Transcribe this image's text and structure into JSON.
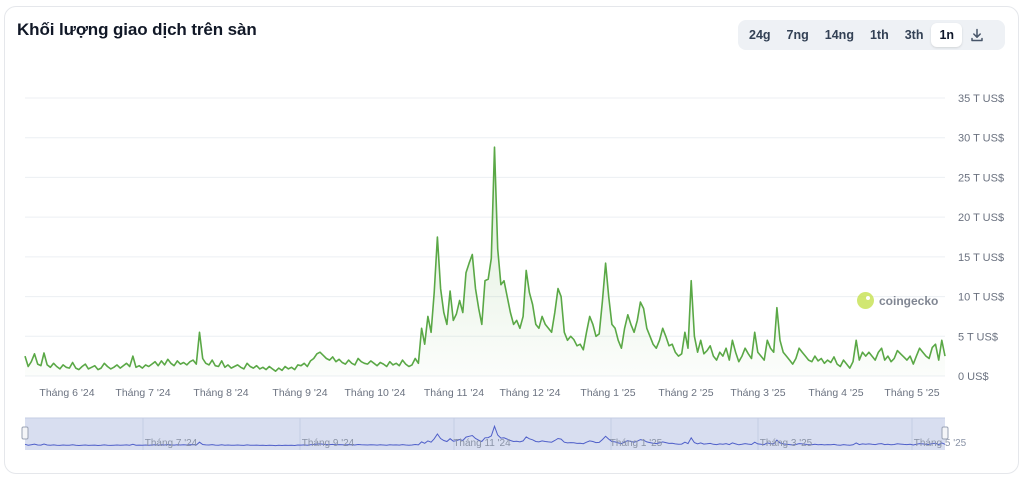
{
  "header": {
    "title": "Khối lượng giao dịch trên sàn",
    "ranges": [
      "24g",
      "7ng",
      "14ng",
      "1th",
      "3th",
      "1n"
    ],
    "active_range": "1n",
    "download_icon": "download-icon"
  },
  "watermark": {
    "text": "coingecko",
    "icon": "coingecko-logo-icon"
  },
  "colors": {
    "line": "#5aa846",
    "area_top": "#5aa846",
    "grid": "#eceff3",
    "axis_text": "#6b7280",
    "navigator_fill": "#d8def0",
    "navigator_line": "#4f5fc9"
  },
  "chart_data": {
    "type": "area",
    "title": "Khối lượng giao dịch trên sàn",
    "xlabel": "",
    "ylabel": "",
    "y_unit": "T US$",
    "ylim": [
      0,
      35
    ],
    "y_ticks": [
      "0 US$",
      "5 T US$",
      "10 T US$",
      "15 T US$",
      "20 T US$",
      "25 T US$",
      "30 T US$",
      "35 T US$"
    ],
    "x_ticks": [
      "Tháng 6 '24",
      "Tháng 7 '24",
      "Tháng 8 '24",
      "Tháng 9 '24",
      "Tháng 10 '24",
      "Tháng 11 '24",
      "Tháng 12 '24",
      "Tháng 1 '25",
      "Tháng 2 '25",
      "Tháng 3 '25",
      "Tháng 4 '25",
      "Tháng 5 '25"
    ],
    "navigator_ticks": [
      "Tháng 7 '24",
      "Tháng 9 '24",
      "Tháng 11 '24",
      "Tháng 1 '25",
      "Tháng 3 '25",
      "Tháng 5 '25"
    ],
    "grid": true,
    "legend": "none",
    "series": [
      {
        "values": [
          2.5,
          1.2,
          1.8,
          2.8,
          1.5,
          1.3,
          2.9,
          1.4,
          1.1,
          1.6,
          1.2,
          0.9,
          1.4,
          1.1,
          1.0,
          1.7,
          1.0,
          0.8,
          1.2,
          1.5,
          0.9,
          1.1,
          1.3,
          0.8,
          1.0,
          1.6,
          1.2,
          0.9,
          1.1,
          1.4,
          1.0,
          1.3,
          1.6,
          1.2,
          2.5,
          1.1,
          1.3,
          1.0,
          1.4,
          1.2,
          1.5,
          1.8,
          1.3,
          1.9,
          1.4,
          2.1,
          1.6,
          1.3,
          1.9,
          1.5,
          1.7,
          1.4,
          1.8,
          2.0,
          1.5,
          5.5,
          2.2,
          1.6,
          1.4,
          2.0,
          1.3,
          1.2,
          1.9,
          1.1,
          1.4,
          1.0,
          1.2,
          1.4,
          1.1,
          0.9,
          1.6,
          1.2,
          1.0,
          1.3,
          0.9,
          1.1,
          0.8,
          1.2,
          0.9,
          0.6,
          1.0,
          0.7,
          1.2,
          0.9,
          1.1,
          0.8,
          1.4,
          1.3,
          1.6,
          1.2,
          1.9,
          2.2,
          2.8,
          3.0,
          2.6,
          2.2,
          2.0,
          2.4,
          1.8,
          2.1,
          1.7,
          1.5,
          2.0,
          1.6,
          1.4,
          2.2,
          1.8,
          1.6,
          1.5,
          1.9,
          1.6,
          1.3,
          1.7,
          1.5,
          1.2,
          1.8,
          1.4,
          1.6,
          1.3,
          2.0,
          1.5,
          1.2,
          1.4,
          2.2,
          1.6,
          6.0,
          4.0,
          7.5,
          5.5,
          10.5,
          17.5,
          11.0,
          8.0,
          6.5,
          10.7,
          7.0,
          7.8,
          9.5,
          8.0,
          13.0,
          14.2,
          15.3,
          11.0,
          8.5,
          6.5,
          12.0,
          12.2,
          14.8,
          28.8,
          16.0,
          11.5,
          12.0,
          10.0,
          8.0,
          6.5,
          7.0,
          6.0,
          7.5,
          13.3,
          10.5,
          9.0,
          6.5,
          6.0,
          7.5,
          6.5,
          6.0,
          5.5,
          8.0,
          11.0,
          10.0,
          5.5,
          4.5,
          5.0,
          4.6,
          3.8,
          4.0,
          3.3,
          5.5,
          7.5,
          6.5,
          5.0,
          5.3,
          9.4,
          14.2,
          10.0,
          6.5,
          6.0,
          4.5,
          3.5,
          6.0,
          7.7,
          6.5,
          5.5,
          7.0,
          9.3,
          8.5,
          6.0,
          5.0,
          4.0,
          3.5,
          4.5,
          6.0,
          5.0,
          3.8,
          4.0,
          3.0,
          2.5,
          2.8,
          5.5,
          3.5,
          12.0,
          5.0,
          3.0,
          4.5,
          2.8,
          3.2,
          3.8,
          2.5,
          2.0,
          3.0,
          2.5,
          3.5,
          2.0,
          4.5,
          3.0,
          1.8,
          2.5,
          3.5,
          2.8,
          2.2,
          5.5,
          3.0,
          2.5,
          2.0,
          4.5,
          3.5,
          3.0,
          8.6,
          4.5,
          3.0,
          2.5,
          2.0,
          1.5,
          2.2,
          3.5,
          3.0,
          2.5,
          2.0,
          1.8,
          2.5,
          1.9,
          2.2,
          1.6,
          2.0,
          1.7,
          2.4,
          1.5,
          1.2,
          2.0,
          1.5,
          1.0,
          1.8,
          4.5,
          2.0,
          3.0,
          2.5,
          3.0,
          2.5,
          2.0,
          3.0,
          3.5,
          2.0,
          2.5,
          1.8,
          2.2,
          3.2,
          2.8,
          2.4,
          2.0,
          2.5,
          1.5,
          2.5,
          3.5,
          3.0,
          2.5,
          2.2,
          3.6,
          4.0,
          2.0,
          4.5,
          2.5
        ]
      }
    ]
  }
}
